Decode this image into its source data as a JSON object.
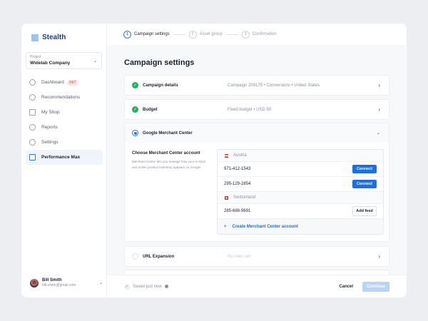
{
  "brand": "Stealth",
  "project": {
    "label": "Project",
    "value": "Widelab Company"
  },
  "nav": [
    {
      "label": "Dashboard",
      "badge": "24/7",
      "icon": "dashboard-icon"
    },
    {
      "label": "Recommendations",
      "icon": "lightbulb-icon"
    },
    {
      "label": "My Shop",
      "icon": "folder-icon"
    },
    {
      "label": "Reports",
      "icon": "reports-icon"
    },
    {
      "label": "Settings",
      "icon": "gear-icon"
    },
    {
      "label": "Performance Max",
      "icon": "briefcase-icon",
      "active": true
    }
  ],
  "user": {
    "name": "Bill Smith",
    "email": "bill.smith@gmail.com"
  },
  "steps": [
    {
      "num": "1",
      "label": "Campaign settings"
    },
    {
      "num": "2",
      "label": "Asset group"
    },
    {
      "num": "3",
      "label": "Confirmation"
    }
  ],
  "title": "Campaign settings",
  "sections": {
    "details": {
      "title": "Campaign details",
      "meta": "Campaign 209175  •  Conversions  •  United States"
    },
    "budget": {
      "title": "Budget",
      "meta": "Fixed budget  •  USD 50"
    },
    "gmc": {
      "title": "Google Merchant Center",
      "choose": "Choose Merchant Center account",
      "desc": "Merchant Center lets you manage how your in-store and online product inventory appears on Google."
    },
    "url": {
      "title": "URL Expansion",
      "meta": "No rules set"
    }
  },
  "accounts": {
    "austria": "Austria",
    "a1": "971-412-1543",
    "a2": "295-129-2854",
    "switzerland": "Switzerland",
    "s1": "285-688-9691",
    "connect": "Connect",
    "addfeed": "Add feed",
    "create": "Create Merchant Center account"
  },
  "footer": {
    "saved": "Saved just now",
    "cancel": "Cancel",
    "continue": "Continue"
  },
  "colors": {
    "accent": "#1a6fe8",
    "success": "#1fb25a"
  }
}
